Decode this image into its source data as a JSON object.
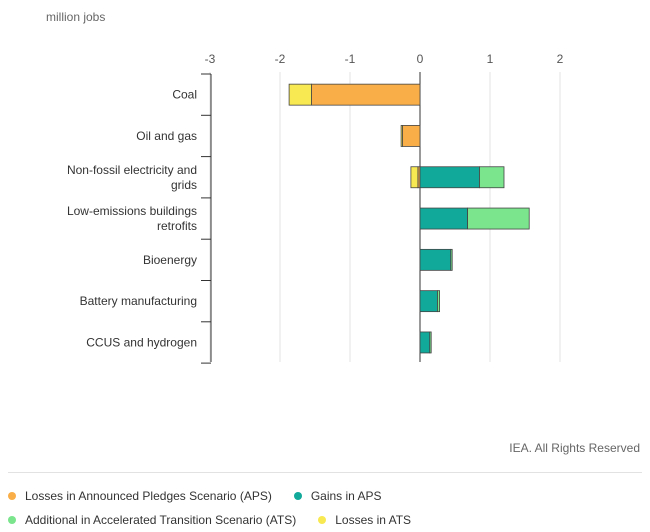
{
  "chart_data": {
    "type": "bar",
    "orientation": "horizontal",
    "stacked": true,
    "unit_label": "million jobs",
    "categories": [
      [
        "Coal"
      ],
      [
        "Oil and gas"
      ],
      [
        "Non-fossil electricity and",
        "grids"
      ],
      [
        "Low-emissions buildings",
        "retrofits"
      ],
      [
        "Bioenergy"
      ],
      [
        "Battery manufacturing"
      ],
      [
        "CCUS and hydrogen"
      ]
    ],
    "series": [
      {
        "name": "Losses in Announced Pledges Scenario (APS)",
        "color": "#f9ae47",
        "values": [
          -1.55,
          -0.25,
          -0.03,
          0,
          0,
          0,
          0
        ]
      },
      {
        "name": "Gains in APS",
        "color": "#11a99a",
        "values": [
          0,
          0,
          0.85,
          0.68,
          0.44,
          0.25,
          0.14
        ]
      },
      {
        "name": "Additional in Accelerated Transition Scenario (ATS)",
        "color": "#7ae58d",
        "values": [
          0,
          0,
          0.35,
          0.88,
          0.02,
          0.03,
          0.02
        ]
      },
      {
        "name": "Losses in ATS",
        "color": "#f8e952",
        "values": [
          -0.32,
          -0.02,
          -0.1,
          0,
          0,
          0,
          0
        ]
      }
    ],
    "xticks": [
      -3,
      -2,
      -1,
      0,
      1,
      2
    ],
    "xlim": [
      -3,
      2.5
    ],
    "grid": true,
    "legend_position": "bottom"
  },
  "copyright": "IEA. All Rights Reserved"
}
